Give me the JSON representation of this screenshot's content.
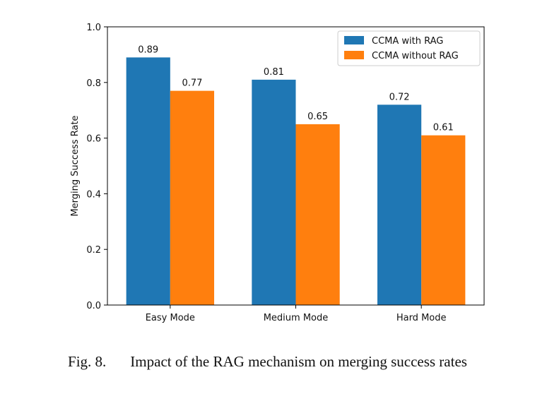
{
  "chart_data": {
    "type": "bar",
    "categories": [
      "Easy Mode",
      "Medium Mode",
      "Hard Mode"
    ],
    "series": [
      {
        "name": "CCMA with RAG",
        "values": [
          0.89,
          0.81,
          0.72
        ],
        "color": "#1f77b4"
      },
      {
        "name": "CCMA without RAG",
        "values": [
          0.77,
          0.65,
          0.61
        ],
        "color": "#ff7f0e"
      }
    ],
    "data_labels": [
      [
        "0.89",
        "0.81",
        "0.72"
      ],
      [
        "0.77",
        "0.65",
        "0.61"
      ]
    ],
    "ylabel": "Merging Success Rate",
    "xlabel": "",
    "ylim": [
      0,
      1.0
    ],
    "yticks": [
      0.0,
      0.2,
      0.4,
      0.6,
      0.8,
      1.0
    ],
    "ytick_labels": [
      "0.0",
      "0.2",
      "0.4",
      "0.6",
      "0.8",
      "1.0"
    ],
    "grid": false,
    "legend_position": "top-right"
  },
  "caption": {
    "fig_number": "Fig. 8.",
    "text": "Impact of the RAG mechanism on merging success rates"
  }
}
